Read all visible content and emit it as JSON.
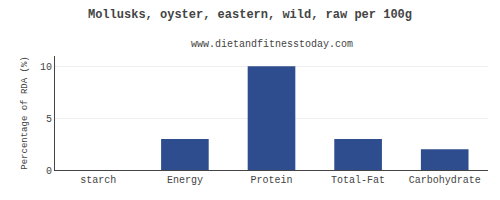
{
  "chart_data": {
    "type": "bar",
    "title": "Mollusks, oyster, eastern, wild, raw per 100g",
    "subtitle": "www.dietandfitnesstoday.com",
    "categories": [
      "starch",
      "Energy",
      "Protein",
      "Total-Fat",
      "Carbohydrate"
    ],
    "values": [
      0,
      3.0,
      10.0,
      3.0,
      2.0
    ],
    "color": "#2e4d8e",
    "ylabel": "Percentage of RDA (%)",
    "ylim": [
      0,
      11
    ],
    "yticks": [
      0,
      5,
      10
    ],
    "grid": true
  }
}
